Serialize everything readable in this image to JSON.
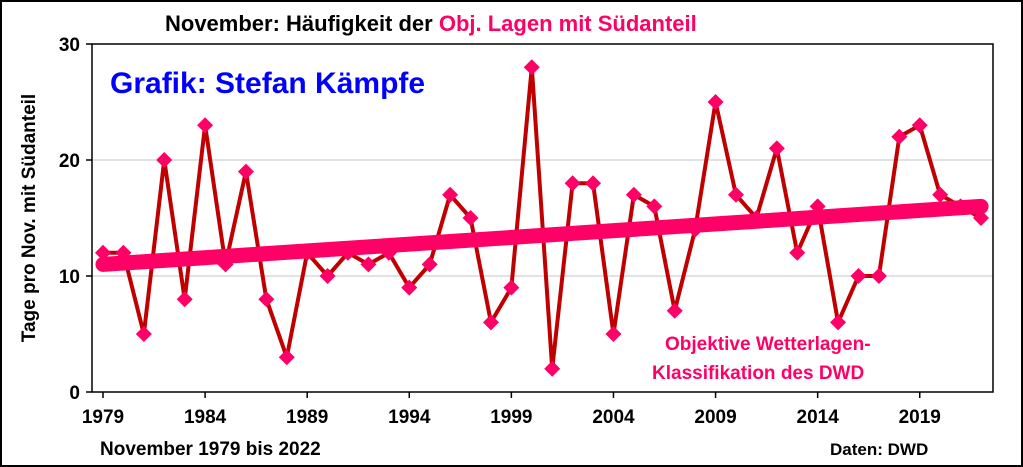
{
  "chart_data": {
    "type": "line",
    "title_part1": "November: Häufigkeit der ",
    "title_part2": "Obj. Lagen mit Südanteil",
    "credit": "Grafik: Stefan Kämpfe",
    "annotation_line1": "Objektive Wetterlagen-",
    "annotation_line2": "Klassifikation des DWD",
    "xlabel": "November 1979 bis 2022",
    "source": "Daten: DWD",
    "ylabel": "Tage pro Nov. mit Südanteil",
    "ylim": [
      0,
      30
    ],
    "yticks": [
      "0",
      "10",
      "20",
      "30"
    ],
    "yticks_values": [
      0,
      10,
      20,
      30
    ],
    "xlim": [
      1979,
      2022
    ],
    "xticks": [
      "1979",
      "1984",
      "1989",
      "1994",
      "1999",
      "2004",
      "2009",
      "2014",
      "2019"
    ],
    "xticks_values": [
      1979,
      1984,
      1989,
      1994,
      1999,
      2004,
      2009,
      2014,
      2019
    ],
    "grid": true,
    "x": [
      1979,
      1980,
      1981,
      1982,
      1983,
      1984,
      1985,
      1986,
      1987,
      1988,
      1989,
      1990,
      1991,
      1992,
      1993,
      1994,
      1995,
      1996,
      1997,
      1998,
      1999,
      2000,
      2001,
      2002,
      2003,
      2004,
      2005,
      2006,
      2007,
      2008,
      2009,
      2010,
      2011,
      2012,
      2013,
      2014,
      2015,
      2016,
      2017,
      2018,
      2019,
      2020,
      2021,
      2022
    ],
    "series": [
      {
        "name": "Tage mit Südanteil",
        "color": "#c00000",
        "marker_color": "#ff0066",
        "values": [
          12,
          12,
          5,
          20,
          8,
          23,
          11,
          19,
          8,
          3,
          12,
          10,
          12,
          11,
          12,
          9,
          11,
          17,
          15,
          6,
          9,
          28,
          2,
          18,
          18,
          5,
          17,
          16,
          7,
          14,
          25,
          17,
          15,
          21,
          12,
          16,
          6,
          10,
          10,
          22,
          23,
          17,
          16,
          15
        ]
      },
      {
        "name": "Trend",
        "color": "#ff0066",
        "x": [
          1979,
          2022
        ],
        "values": [
          11,
          16
        ]
      }
    ]
  }
}
